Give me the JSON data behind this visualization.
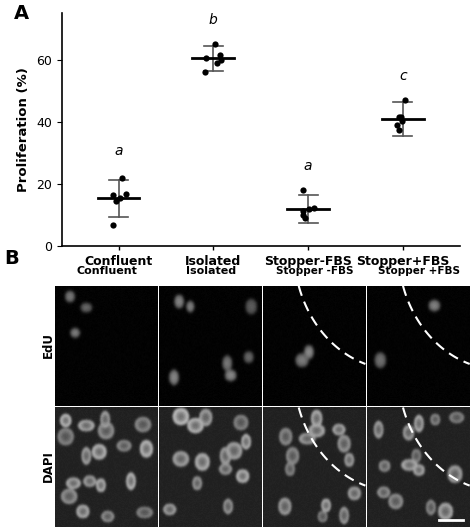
{
  "panel_A_label": "A",
  "panel_B_label": "B",
  "categories": [
    "Confluent",
    "Isolated",
    "Stopper-FBS",
    "Stopper+FBS"
  ],
  "means": [
    15.5,
    60.5,
    12.0,
    41.0
  ],
  "errors": [
    6.0,
    4.0,
    4.5,
    5.5
  ],
  "letter_labels": [
    "a",
    "b",
    "a",
    "c"
  ],
  "dot_data": [
    [
      14.5,
      17.0,
      22.0,
      15.5,
      7.0,
      16.5
    ],
    [
      60.5,
      61.5,
      65.0,
      59.0,
      56.0,
      60.0
    ],
    [
      12.5,
      11.5,
      18.0,
      10.0,
      9.0,
      12.0
    ],
    [
      40.5,
      41.5,
      47.0,
      39.0,
      37.5,
      41.5
    ]
  ],
  "ylabel": "Proliferation (%)",
  "ylim": [
    0,
    75
  ],
  "yticks": [
    0,
    20,
    40,
    60
  ],
  "x_positions": [
    0,
    1,
    2,
    3
  ],
  "dot_color": "#000000",
  "mean_line_color": "#000000",
  "error_bar_color": "#555555",
  "background_color": "#ffffff",
  "panel_B_row_labels": [
    "EdU",
    "DAPI"
  ],
  "panel_B_col_labels": [
    "Confluent",
    "Isolated",
    "Stopper -FBS",
    "Stopper +FBS"
  ]
}
